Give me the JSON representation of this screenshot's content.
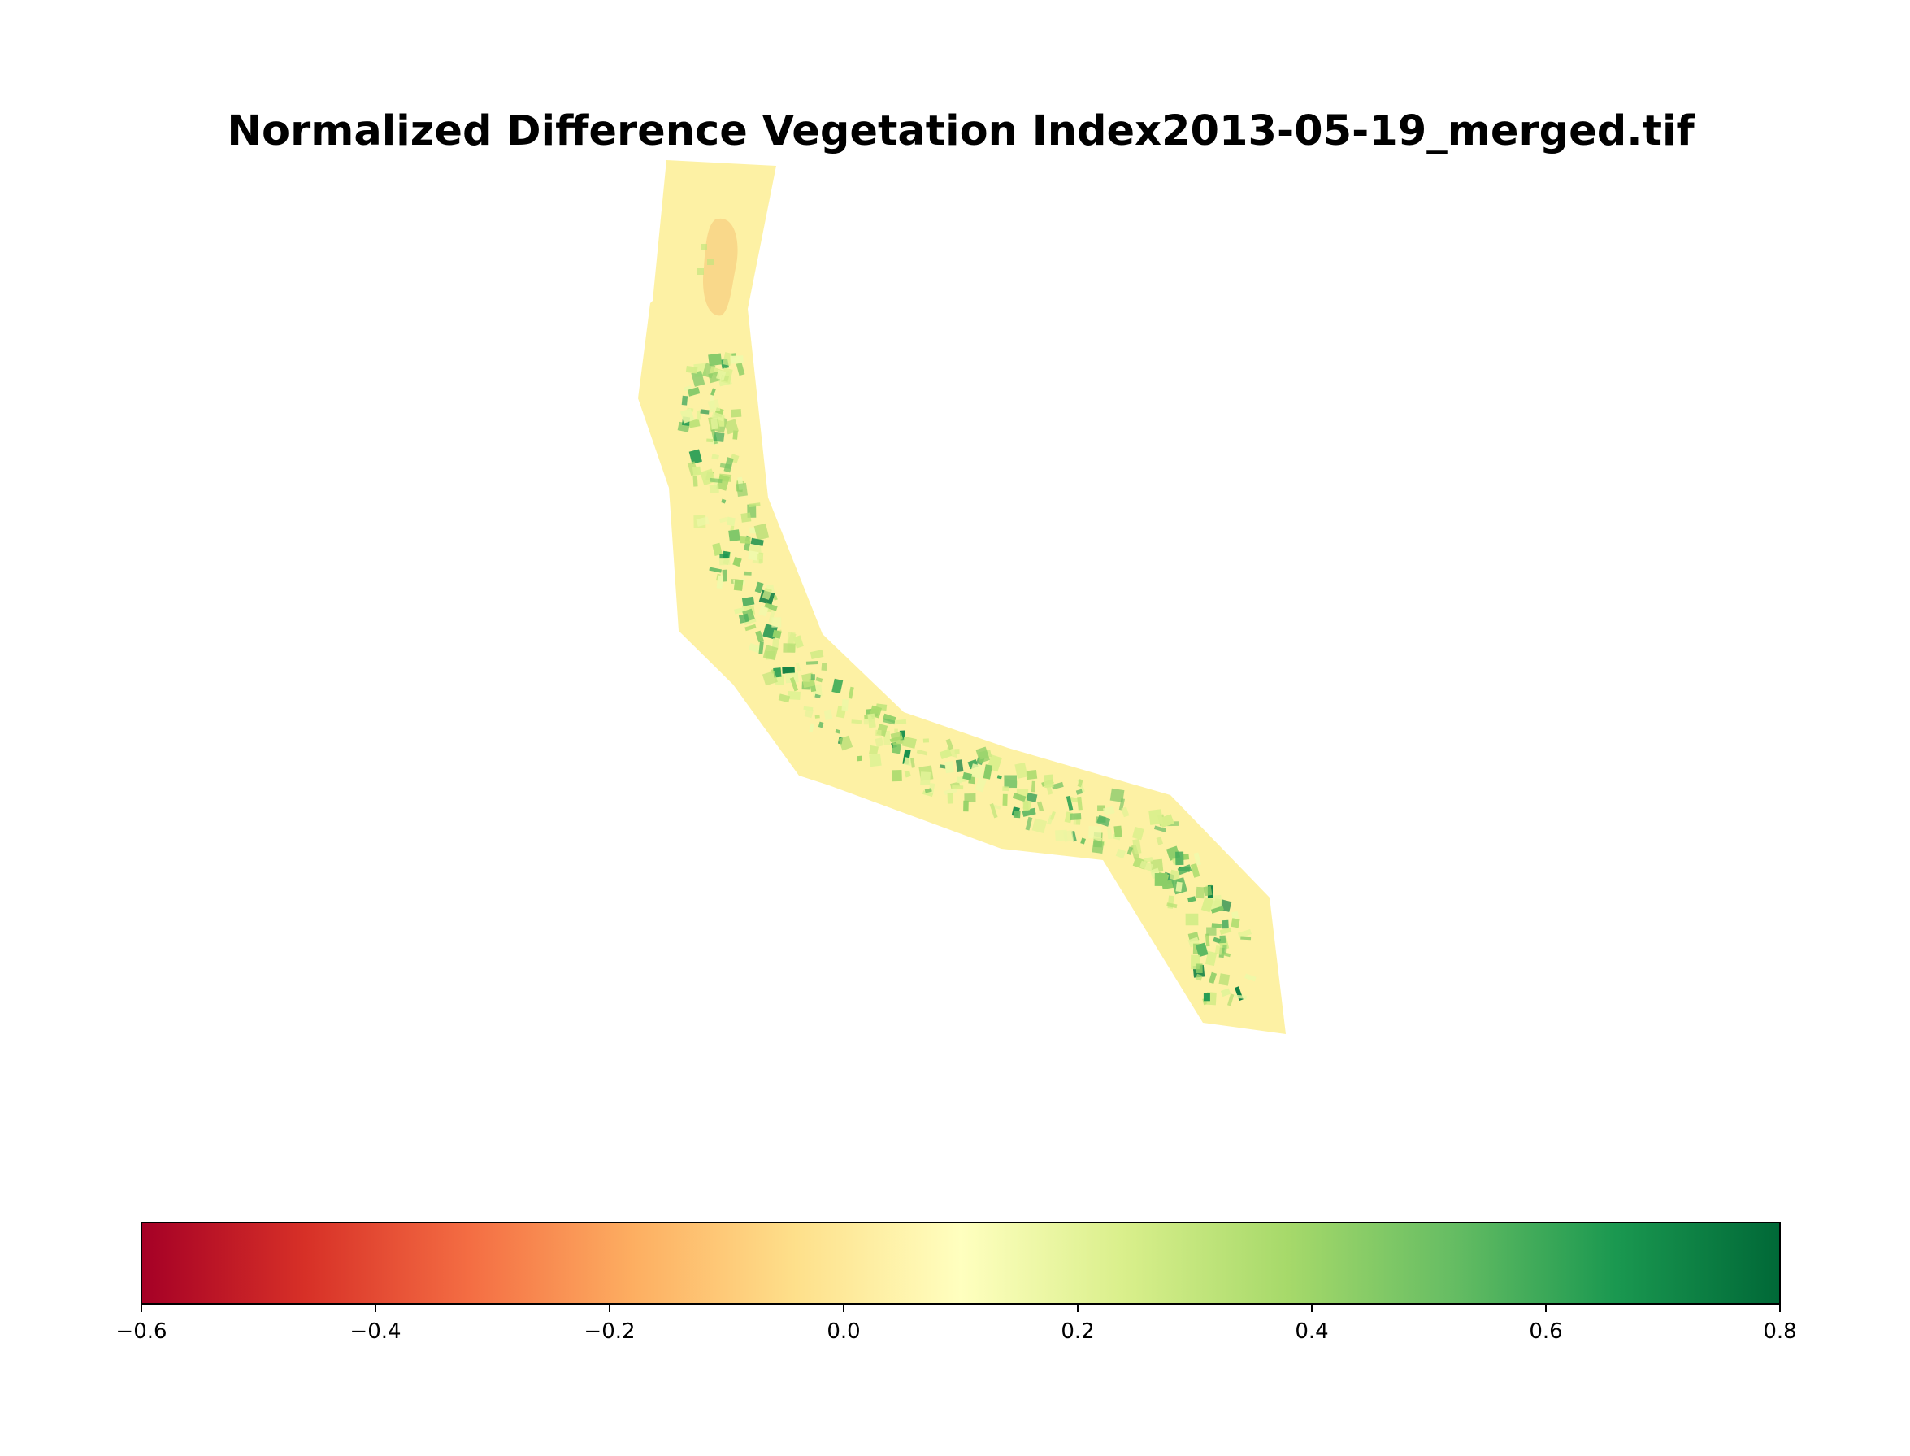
{
  "title": "Normalized Difference Vegetation Index2013-05-19_merged.tif",
  "colormap": {
    "name": "RdYlGn",
    "min": -0.6,
    "max": 0.8,
    "stops": [
      "#a50026",
      "#d73027",
      "#f46d43",
      "#fdae61",
      "#fee08b",
      "#ffffbf",
      "#d9ef8b",
      "#a6d96a",
      "#66bd63",
      "#1a9850",
      "#006837"
    ]
  },
  "colorbar": {
    "orientation": "horizontal",
    "ticks": [
      {
        "value": -0.6,
        "label": "−0.6"
      },
      {
        "value": -0.4,
        "label": "−0.4"
      },
      {
        "value": -0.2,
        "label": "−0.2"
      },
      {
        "value": 0.0,
        "label": "0.0"
      },
      {
        "value": 0.2,
        "label": "0.2"
      },
      {
        "value": 0.4,
        "label": "0.4"
      },
      {
        "value": 0.6,
        "label": "0.6"
      },
      {
        "value": 0.8,
        "label": "0.8"
      }
    ]
  },
  "raster": {
    "background_value": 0.02,
    "dry_patch_value": -0.08,
    "vegetation_value_range": [
      0.15,
      0.75
    ]
  },
  "colors": {
    "strip_fill": "#fdf1a4",
    "dry_patch": "#f9d88a",
    "frame": "#000000"
  }
}
